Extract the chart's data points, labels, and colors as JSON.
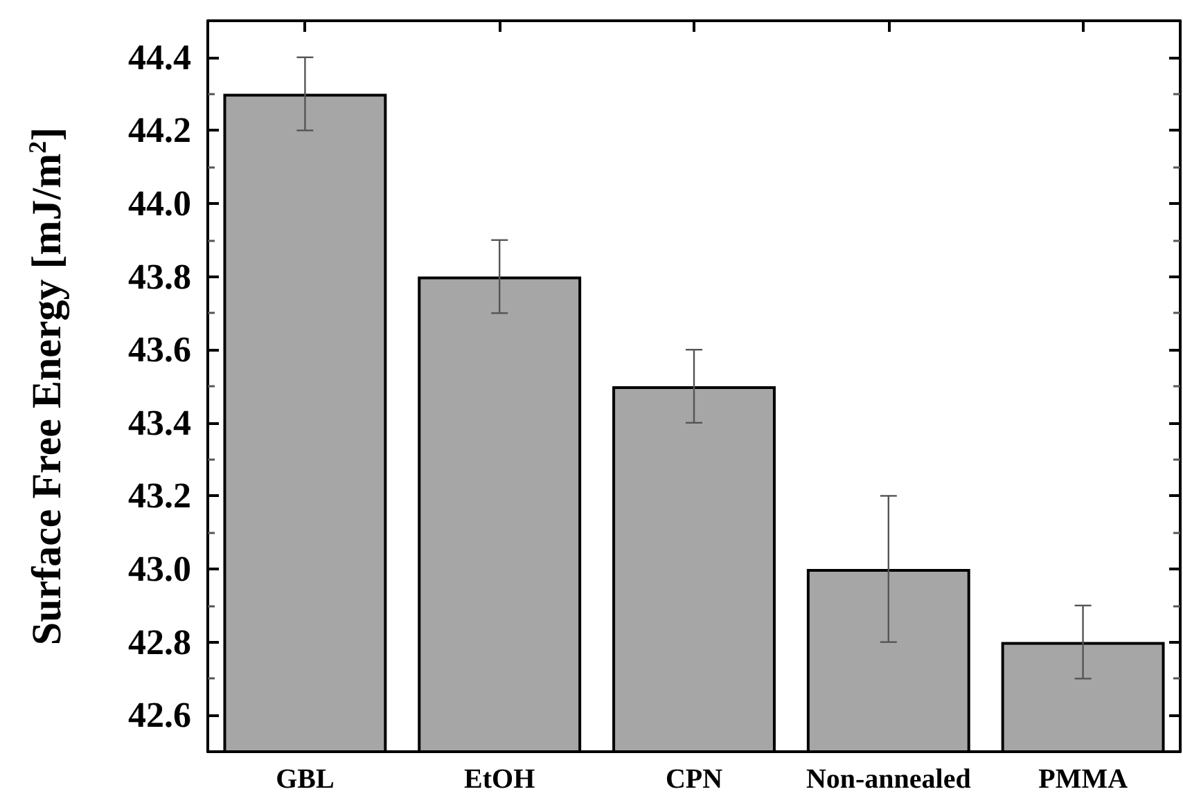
{
  "chart_data": {
    "type": "bar",
    "ylabel": "Surface Free Energy [mJ/m$^{2}$]",
    "categories": [
      "GBL",
      "EtOH",
      "CPN",
      "Non-annealed",
      "PMMA"
    ],
    "values": [
      44.3,
      43.8,
      43.5,
      43.0,
      42.8
    ],
    "errors": [
      0.1,
      0.1,
      0.1,
      0.2,
      0.1
    ],
    "color": "#a6a6a6",
    "ylim": [
      42.5,
      44.5
    ],
    "yticks": [
      42.6,
      42.8,
      {
        "value": 43,
        "label": "43.0"
      },
      43.2,
      43.4,
      43.6,
      43.8,
      {
        "value": 44,
        "label": "44.0"
      },
      44.2,
      44.4
    ],
    "grid": false
  }
}
